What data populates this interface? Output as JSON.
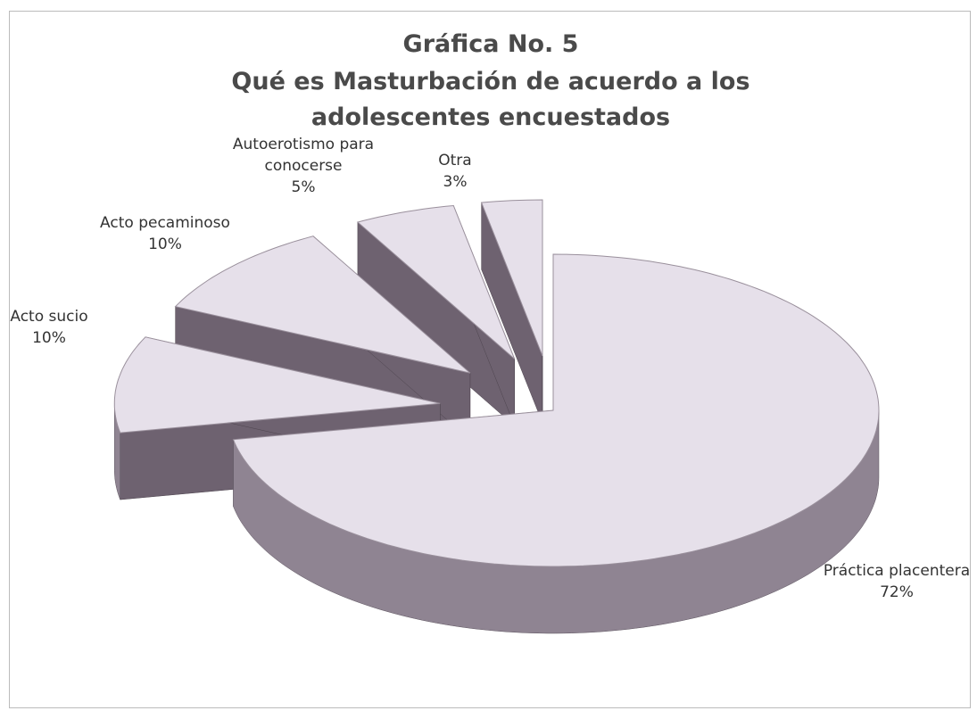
{
  "chart_data": {
    "type": "pie3d",
    "title": "Gráfica No. 5",
    "subtitle": "Qué es Masturbación de acuerdo a los adolescentes encuestados",
    "categories": [
      "Práctica placentera",
      "Acto sucio",
      "Acto pecaminoso",
      "Autoerotismo para conocerse",
      "Otra"
    ],
    "values": [
      72,
      10,
      10,
      5,
      3
    ],
    "value_labels": [
      "72%",
      "10%",
      "10%",
      "5%",
      "3%"
    ],
    "color": "#e6e0ea"
  }
}
